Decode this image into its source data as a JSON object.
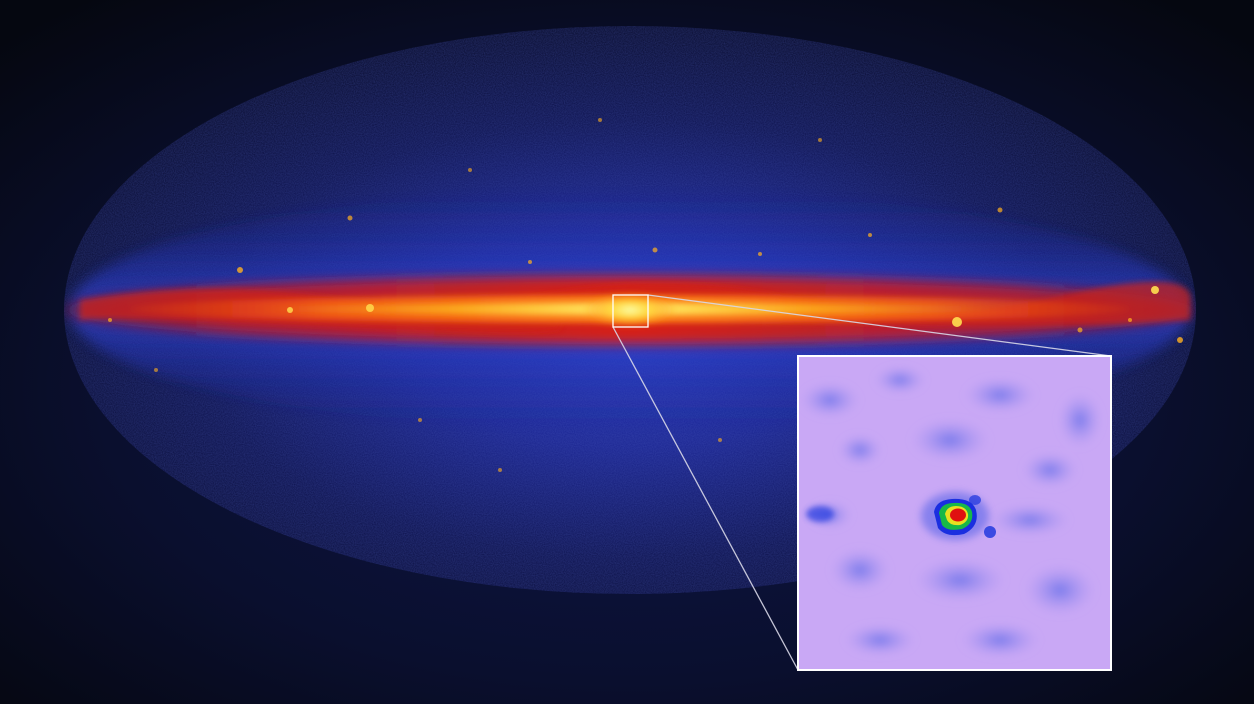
{
  "image": {
    "subject": "all-sky-gamma-ray-map",
    "projection": "aitoff-ellipse",
    "colormap": [
      "#060a3a",
      "#1a2bb0",
      "#c01818",
      "#ff4a10",
      "#ffd020",
      "#f6ff8a"
    ],
    "background_color": "#060812",
    "inset": {
      "subject": "galactic-center-zoom",
      "background_color": "#c9a8f5",
      "colormap": [
        "#c9a8f5",
        "#8f8cf0",
        "#2a3fe0",
        "#18b848",
        "#e8e020",
        "#e01010"
      ],
      "frame_color": "#ffffff",
      "connector_color": "#d8d8e8"
    }
  }
}
